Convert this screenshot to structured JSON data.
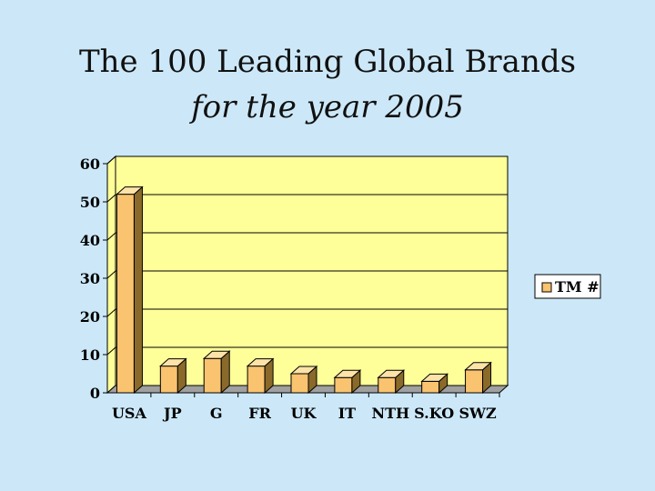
{
  "chart_data": {
    "type": "bar",
    "title": "The 100 Leading Global Brands",
    "subtitle": "for the year 2005",
    "categories": [
      "USA",
      "JP",
      "G",
      "FR",
      "UK",
      "IT",
      "NTH",
      "S.KO",
      "SWZ"
    ],
    "series": [
      {
        "name": "TM #",
        "values": [
          52,
          7,
          9,
          7,
          5,
          4,
          4,
          3,
          6
        ]
      }
    ],
    "ylim": [
      0,
      60
    ],
    "yticks": [
      0,
      10,
      20,
      30,
      40,
      50,
      60
    ],
    "grid": true,
    "legend": "right",
    "style": "3d-bar",
    "colors": {
      "bar_front": "#f9c36f",
      "bar_side": "#8a6a2a",
      "bar_top": "#fde3a8",
      "plot_back": "#ffff99",
      "plot_floor": "#a0a0a0",
      "background": "#cce8f8"
    }
  }
}
